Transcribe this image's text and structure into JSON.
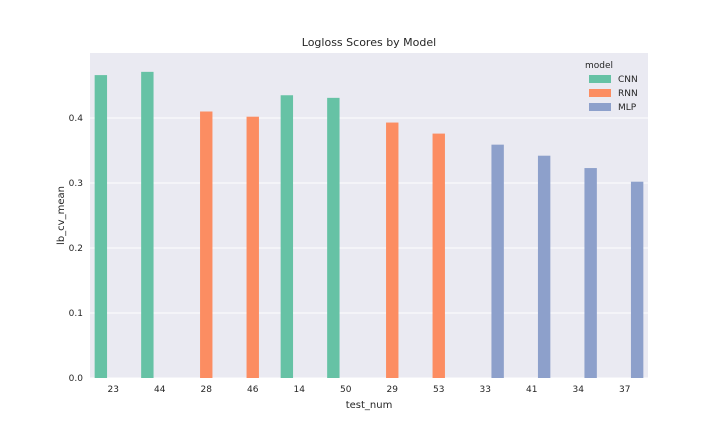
{
  "chart_data": {
    "type": "bar",
    "title": "Logloss Scores by Model",
    "xlabel": "test_num",
    "ylabel": "lb_cv_mean",
    "categories": [
      "23",
      "44",
      "28",
      "46",
      "14",
      "50",
      "29",
      "53",
      "33",
      "41",
      "34",
      "37"
    ],
    "ylim": [
      0,
      0.5
    ],
    "yticks": [
      0.0,
      0.1,
      0.2,
      0.3,
      0.4
    ],
    "ytick_labels": [
      "0.0",
      "0.1",
      "0.2",
      "0.3",
      "0.4"
    ],
    "grid": true,
    "legend": {
      "title": "model",
      "placement": "top-right"
    },
    "series": [
      {
        "name": "CNN",
        "color": "#66c2a5",
        "values": [
          0.466,
          0.471,
          null,
          null,
          0.435,
          0.431,
          null,
          null,
          null,
          null,
          null,
          null
        ]
      },
      {
        "name": "RNN",
        "color": "#fc8d62",
        "values": [
          null,
          null,
          0.41,
          0.402,
          null,
          null,
          0.393,
          0.376,
          null,
          null,
          null,
          null
        ]
      },
      {
        "name": "MLP",
        "color": "#8da0cb",
        "values": [
          null,
          null,
          null,
          null,
          null,
          null,
          null,
          null,
          0.359,
          0.342,
          0.323,
          0.302
        ]
      }
    ]
  },
  "colors": {
    "plot_background": "#eaeaf2",
    "grid": "#ffffff",
    "text": "#262626"
  }
}
